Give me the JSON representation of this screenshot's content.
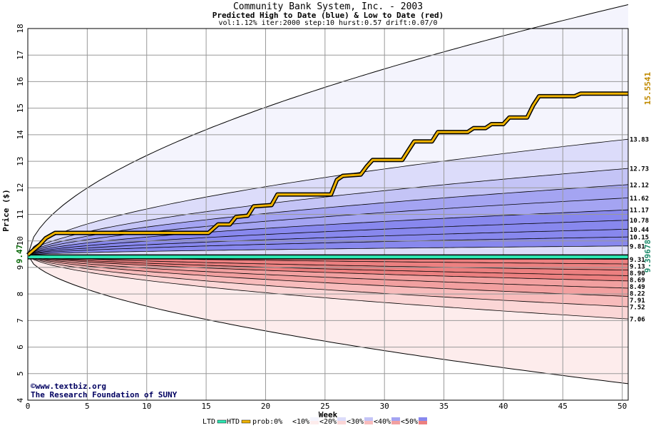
{
  "chart_data": {
    "type": "area",
    "title": "Community Bank System, Inc. - 2003",
    "subtitle": "Predicted High to Date (blue) &  Low to Date (red)",
    "params": "vol:1.12% iter:2000 step:10 hurst:0.57 drift:0.07/0",
    "xlabel": "Week",
    "ylabel": "Price ($)",
    "xlim": [
      0,
      50.5
    ],
    "ylim": [
      4,
      18
    ],
    "x_ticks": [
      0,
      5,
      10,
      15,
      20,
      25,
      30,
      35,
      40,
      45,
      50
    ],
    "y_ticks": [
      4,
      5,
      6,
      7,
      8,
      9,
      10,
      11,
      12,
      13,
      14,
      15,
      16,
      17,
      18
    ],
    "start_price": 9.47,
    "start_label": "9.47",
    "ltd_value": 9.39678,
    "ltd_label": "9.39678",
    "htd_value": 15.5541,
    "htd_label": "15.5541",
    "end_labels": [
      "13.83",
      "12.73",
      "12.12",
      "11.62",
      "11.17",
      "10.78",
      "10.44",
      "10.15",
      "9.81",
      "9.31",
      "9.13",
      "8.90",
      "8.69",
      "8.49",
      "8.22",
      "7.91",
      "7.52",
      "7.06"
    ],
    "outer_envelope": {
      "upper_end": 18.9,
      "lower_end": 4.62
    },
    "htd_path": [
      [
        0,
        9.47
      ],
      [
        1,
        9.85
      ],
      [
        1.5,
        10.1
      ],
      [
        2.3,
        10.3
      ],
      [
        15.2,
        10.3
      ],
      [
        15.5,
        10.42
      ],
      [
        16,
        10.62
      ],
      [
        17,
        10.62
      ],
      [
        17.5,
        10.9
      ],
      [
        18.5,
        10.95
      ],
      [
        19,
        11.3
      ],
      [
        20.5,
        11.35
      ],
      [
        21,
        11.75
      ],
      [
        25.5,
        11.75
      ],
      [
        26,
        12.3
      ],
      [
        26.5,
        12.45
      ],
      [
        28,
        12.5
      ],
      [
        28.5,
        12.8
      ],
      [
        29,
        13.05
      ],
      [
        31.5,
        13.05
      ],
      [
        32,
        13.4
      ],
      [
        32.5,
        13.75
      ],
      [
        34,
        13.75
      ],
      [
        34.5,
        14.1
      ],
      [
        37,
        14.1
      ],
      [
        37.5,
        14.25
      ],
      [
        38.5,
        14.25
      ],
      [
        39,
        14.4
      ],
      [
        40,
        14.4
      ],
      [
        40.5,
        14.65
      ],
      [
        42,
        14.65
      ],
      [
        42.5,
        15.1
      ],
      [
        43,
        15.45
      ],
      [
        46,
        15.45
      ],
      [
        46.5,
        15.55
      ],
      [
        50.5,
        15.55
      ]
    ],
    "legend": [
      "LTD",
      "HTD",
      "prob:0%",
      "<10%",
      "<20%",
      "<30%",
      "<40%",
      "<50%"
    ],
    "colors": {
      "ltd": "#2ee8b4",
      "htd": "#f0b400",
      "htd_label": "#c08a00",
      "ltd_label": "#1a8a6a",
      "upper_bands": [
        "#f4f4fd",
        "#dcdcfa",
        "#c4c4f6",
        "#a4a4f2",
        "#8888ee"
      ],
      "lower_bands": [
        "#fdecec",
        "#fbd6d6",
        "#f8bcbc",
        "#f2a0a0",
        "#ec8080"
      ]
    },
    "credits": [
      "©www.textbiz.org",
      "The Research Foundation of SUNY"
    ]
  }
}
